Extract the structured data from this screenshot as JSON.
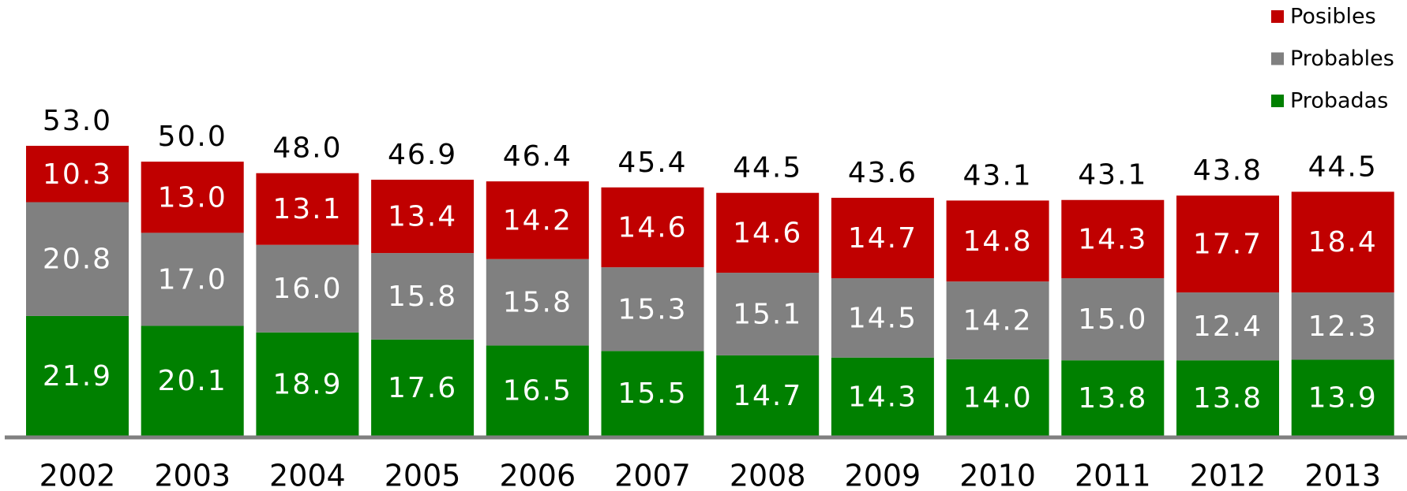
{
  "chart_data": {
    "type": "stacked_bar",
    "categories": [
      "2002",
      "2003",
      "2004",
      "2005",
      "2006",
      "2007",
      "2008",
      "2009",
      "2010",
      "2011",
      "2012",
      "2013"
    ],
    "series": [
      {
        "name": "Probadas",
        "color": "#008000",
        "values": [
          21.9,
          20.1,
          18.9,
          17.6,
          16.5,
          15.5,
          14.7,
          14.3,
          14.0,
          13.8,
          13.8,
          13.9
        ],
        "value_labels": [
          "21.9",
          "20.1",
          "18.9",
          "17.6",
          "16.5",
          "15.5",
          "14.7",
          "14.3",
          "14.0",
          "13.8",
          "13.8",
          "13.9"
        ]
      },
      {
        "name": "Probables",
        "color": "#808080",
        "values": [
          20.8,
          17.0,
          16.0,
          15.8,
          15.8,
          15.3,
          15.1,
          14.5,
          14.2,
          15.0,
          12.4,
          12.3
        ],
        "value_labels": [
          "20.8",
          "17.0",
          "16.0",
          "15.8",
          "15.8",
          "15.3",
          "15.1",
          "14.5",
          "14.2",
          "15.0",
          "12.4",
          "12.3"
        ]
      },
      {
        "name": "Posibles",
        "color": "#c00000",
        "values": [
          10.3,
          13.0,
          13.1,
          13.4,
          14.2,
          14.6,
          14.6,
          14.7,
          14.8,
          14.3,
          17.7,
          18.4
        ],
        "value_labels": [
          "10.3",
          "13.0",
          "13.1",
          "13.4",
          "14.2",
          "14.6",
          "14.6",
          "14.7",
          "14.8",
          "14.3",
          "17.7",
          "18.4"
        ]
      }
    ],
    "totals": {
      "values": [
        53.0,
        50.0,
        48.0,
        46.9,
        46.4,
        45.4,
        44.5,
        43.6,
        43.1,
        43.1,
        43.8,
        44.5
      ],
      "value_labels": [
        "53.0",
        "50.0",
        "48.0",
        "46.9",
        "46.4",
        "45.4",
        "44.5",
        "43.6",
        "43.1",
        "43.1",
        "43.8",
        "44.5"
      ]
    },
    "legend": "top-right"
  }
}
